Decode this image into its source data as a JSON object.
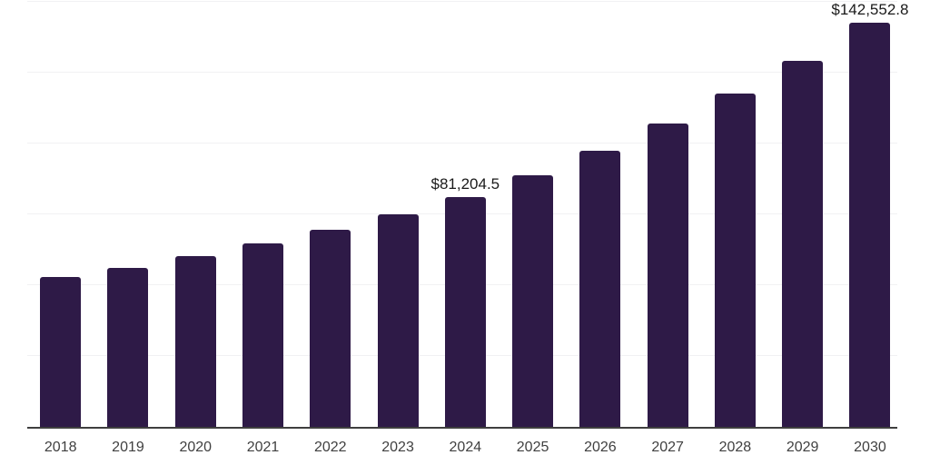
{
  "chart_data": {
    "type": "bar",
    "title": "",
    "xlabel": "",
    "ylabel": "",
    "categories": [
      "2018",
      "2019",
      "2020",
      "2021",
      "2022",
      "2023",
      "2024",
      "2025",
      "2026",
      "2027",
      "2028",
      "2029",
      "2030"
    ],
    "values": [
      52900,
      56000,
      60300,
      64600,
      69600,
      75000,
      81204.5,
      88800,
      97500,
      107100,
      117500,
      129300,
      142552.8
    ],
    "data_labels": [
      {
        "category": "2024",
        "text": "$81,204.5"
      },
      {
        "category": "2030",
        "text": "$142,552.8"
      }
    ],
    "ylim": [
      0,
      150000
    ],
    "gridline_step": 25000,
    "grid": true,
    "legend": false,
    "y_axis_tick_labels_visible": false,
    "colors": {
      "bar": "#2e1a47",
      "gridline": "#f1f1f3",
      "axis_line": "#3f3f3f",
      "x_tick_label": "#404040",
      "data_label": "#1a1a1a",
      "background": "#ffffff"
    }
  }
}
